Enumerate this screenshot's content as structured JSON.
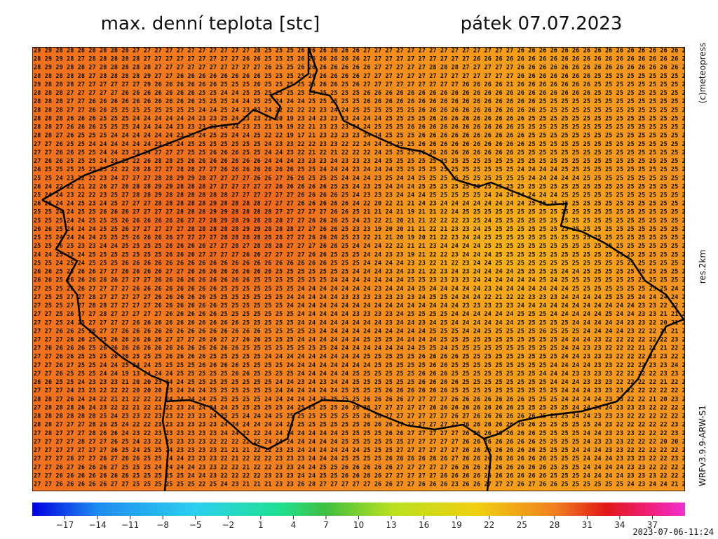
{
  "header": {
    "title": "max. denní teplota [stc]",
    "date": "pátek 07.07.2023"
  },
  "side": {
    "copyright": "(c)meteopress",
    "resolution": "res.2km",
    "model": "WRFv3.9.9-ARW-S1"
  },
  "timestamp": "2023-07-06-11:24",
  "colorbar": {
    "lim": [
      -20,
      40
    ],
    "ticks": [
      {
        "value": -17,
        "label": "−17"
      },
      {
        "value": -14,
        "label": "−14"
      },
      {
        "value": -11,
        "label": "−11"
      },
      {
        "value": -8,
        "label": "−8"
      },
      {
        "value": -5,
        "label": "−5"
      },
      {
        "value": -2,
        "label": "−2"
      },
      1,
      4,
      7,
      10,
      13,
      16,
      19,
      22,
      25,
      28,
      31,
      34,
      37
    ]
  },
  "grid": {
    "rows": [
      "29 29 28 28 28 28 28 28 28 27 27 27 27 27 27 27 27 27 27 27 28 25 25 25 26 26 26 26 26 26 27 27 27 27 27 27 27 27 27 27 27 27 27 27 26 26 26 26 26 26 26 26 26 26 26 26 26 26 26 26",
      "28 29 29 28 27 28 28 28 28 28 27 27 27 27 27 27 27 27 27 26 26 25 25 25 26 26 26 26 26 26 27 27 27 27 27 27 27 27 27 27 26 26 26 26 26 26 26 26 26 26 26 26 26 26 26 26 26 26 26 26",
      "28 29 29 28 28 27 28 28 28 28 28 27 27 27 27 27 27 27 27 27 27 26 25 25 26 26 26 26 26 26 26 27 27 27 27 27 28 28 28 27 27 27 27 27 26 26 26 26 26 26 26 26 26 26 26 26 26 26 26 26",
      "28 28 28 28 28 27 28 28 28 28 29 27 27 26 26 26 26 26 26 26 26 25 25 25 25 26 26 26 26 26 27 27 27 27 27 27 27 27 27 27 27 27 27 27 26 26 26 26 26 26 26 25 25 25 25 25 25 25 25 25",
      "29 28 28 28 27 27 27 27 27 27 29 26 26 26 26 26 26 25 25 25 26 25 25 25 25 25 26 26 25 26 27 27 27 27 27 27 27 27 27 26 26 26 26 21 26 26 26 26 26 26 26 25 25 25 25 25 25 25 25 25",
      "28 28 28 27 27 27 27 27 26 26 26 26 26 26 26 25 25 24 24 25 25 25 25 25 25 25 25 25 25 25 26 26 26 26 26 26 26 26 26 26 26 26 26 26 26 26 26 26 26 26 26 25 25 25 25 25 25 25 25 25",
      "28 28 28 27 27 26 26 26 26 26 26 26 26 26 26 25 25 25 24 24 25 25 24 24 24 25 25 25 25 25 26 26 26 26 26 26 26 26 26 26 26 26 26 26 26 26 25 25 25 25 25 25 25 25 25 25 25 25 25 25",
      "28 28 28 27 27 26 26 25 25 25 25 25 25 25 25 24 24 25 24 23 23 24 22 22 22 22 23 24 24 25 25 25 25 25 25 26 26 26 26 26 26 26 26 26 26 26 25 25 25 25 25 25 25 25 25 25 25 25 25 25",
      "28 28 28 26 26 26 25 25 25 24 24 24 24 24 24 23 23 25 24 23 23 21 20 19 23 24 23 23 23 24 24 24 25 25 25 25 26 26 26 26 26 26 26 26 26 25 25 25 25 25 25 25 25 25 25 25 25 25 25 25",
      "28 28 27 26 26 26 25 25 25 24 24 24 24 23 23 23 23 24 24 23 23 21 19 19 22 21 23 23 23 24 24 25 25 25 26 26 26 26 26 26 26 26 26 26 25 25 25 25 25 25 25 25 25 25 25 25 25 25 25 25",
      "28 28 27 26 25 25 25 24 24 24 24 24 24 23 23 24 25 25 24 24 25 22 22 19 17 21 23 23 23 23 24 24 25 25 25 26 26 26 26 26 26 26 26 26 26 25 25 25 25 25 25 25 25 25 25 25 25 25 25 25",
      "27 27 26 25 25 24 24 24 24 24 24 23 23 24 25 25 25 25 25 25 25 24 23 23 22 22 23 23 22 22 24 24 25 25 25 26 26 26 26 26 26 26 26 26 26 25 25 25 25 25 25 25 25 25 25 25 25 25 25 25",
      "27 27 26 26 25 25 24 24 23 23 24 27 27 27 25 25 26 26 26 25 25 24 24 23 22 21 22 21 22 22 22 24 25 25 25 26 26 26 26 26 26 26 26 26 25 25 25 25 25 25 25 25 25 25 25 25 25 25 25 25",
      "27 26 26 25 25 25 24 23 23 22 26 28 28 25 26 26 26 26 26 26 26 24 24 24 23 23 23 24 23 23 23 24 25 25 25 25 25 25 25 25 25 25 25 25 25 25 25 25 25 25 25 25 25 25 25 25 25 25 25 25",
      "26 25 25 25 25 23 23 22 22 28 28 27 27 28 28 27 27 26 26 26 26 26 26 26 25 25 24 24 24 23 24 24 24 25 25 25 25 25 25 25 25 25 25 25 24 24 24 24 25 25 25 25 25 25 25 25 25 25 25 25",
      "25 25 24 23 22 22 23 24 27 27 27 28 28 29 29 28 27 27 27 27 26 26 27 26 26 25 25 25 24 24 24 23 25 24 24 25 25 25 25 25 25 25 25 25 25 24 24 24 24 24 25 25 25 25 25 25 25 25 25 25",
      "26 24 22 22 21 22 26 27 28 28 28 29 29 28 28 28 27 27 27 27 27 27 26 26 26 26 26 25 25 24 23 25 24 24 24 25 25 25 25 25 25 25 25 25 25 25 25 25 25 25 25 25 25 25 25 25 25 25 25 25",
      "25 24 24 23 22 22 23 25 27 28 28 29 28 28 28 28 28 28 27 27 27 27 27 27 26 26 26 26 25 24 23 23 23 24 24 24 25 25 25 25 25 24 24 24 24 24 24 24 25 25 25 25 25 25 25 25 25 25 25 25",
      "26 25 24 24 25 23 24 25 27 27 27 28 28 28 28 28 29 28 28 28 28 27 27 27 26 26 26 26 26 24 22 20 22 21 21 24 23 24 24 24 24 24 24 24 24 25 25 25 25 25 25 25 25 25 25 25 25 25 25 25",
      "25 25 24 24 25 25 26 26 26 27 27 27 27 28 28 28 29 29 28 28 28 28 27 27 27 27 27 26 26 25 21 21 24 21 19 21 21 22 24 25 25 25 25 25 25 25 25 25 25 25 25 25 25 25 25 25 25 25 25 25",
      "25 25 25 24 24 25 25 25 26 26 26 26 26 26 27 27 28 29 28 29 28 28 28 27 27 26 26 26 25 24 23 22 21 20 21 21 22 22 22 23 25 24 25 25 25 25 25 25 25 25 25 25 25 25 25 25 25 25 25 25",
      "26 26 25 24 24 24 25 25 26 27 27 27 27 27 28 28 28 28 28 29 29 28 28 28 27 27 26 26 25 23 23 19 20 20 21 21 22 21 23 23 24 25 25 25 25 25 25 25 25 25 25 25 25 25 25 25 25 25 25 25",
      "25 25 24 24 24 24 25 25 25 26 26 26 26 27 27 27 27 28 28 28 28 28 28 27 27 26 26 26 25 23 22 21 21 20 19 20 21 22 23 24 24 25 25 25 25 25 25 25 25 25 25 25 25 25 25 25 25 25 25 25",
      "25 25 26 25 23 23 24 24 25 25 25 25 26 26 26 26 27 27 28 27 28 28 28 27 27 27 26 26 25 24 24 24 22 22 21 21 23 24 24 24 24 25 25 25 25 25 25 25 25 25 25 25 25 25 25 25 25 25 25 25",
      "24 24 25 23 24 25 25 25 25 25 25 25 26 26 26 27 27 27 27 26 26 27 27 27 27 26 26 25 25 25 24 24 23 23 19 21 22 22 23 24 24 24 25 25 25 25 25 25 25 25 25 25 25 25 25 25 25 25 25 25",
      "25 25 24 25 24 25 25 25 26 26 26 26 26 26 26 26 26 26 26 26 26 26 26 26 26 26 26 25 25 25 24 24 24 24 23 23 22 21 22 23 24 24 25 25 25 25 25 25 25 25 25 25 25 25 25 25 25 25 25 25",
      "26 26 25 25 26 26 27 27 26 26 26 26 27 27 26 26 26 26 26 26 26 26 25 25 25 25 25 25 25 24 24 24 23 24 23 21 22 23 24 23 24 24 24 24 25 25 25 25 24 24 25 25 25 25 25 25 25 25 25 25",
      "26 26 25 26 26 26 26 26 27 27 27 26 26 26 26 26 26 26 26 26 25 25 25 25 25 25 25 24 24 24 24 24 24 24 25 25 23 23 23 23 24 24 24 24 24 24 25 24 25 25 25 25 25 25 25 25 25 25 25 24",
      "27 25 25 26 26 27 27 27 27 26 26 26 26 26 26 26 26 25 25 25 25 25 25 25 24 24 24 24 24 24 24 23 24 24 24 25 24 24 24 24 24 23 24 24 24 24 24 24 24 25 25 25 25 25 25 25 25 25 24 24",
      "27 25 25 27 27 28 27 27 27 27 27 26 26 26 26 26 25 25 25 25 25 25 25 24 24 24 24 24 23 23 23 23 23 23 23 24 25 25 24 24 24 22 21 22 22 23 23 23 24 24 24 24 25 25 25 24 24 24 24 24",
      "27 25 25 27 27 28 28 27 27 27 27 26 26 26 26 26 26 25 25 25 25 25 25 24 24 24 24 24 24 24 24 24 24 24 24 24 24 24 24 23 23 23 23 23 24 24 24 24 24 24 24 24 24 24 24 23 23 22 22 22",
      "27 27 25 26 27 27 28 27 27 27 27 27 26 26 26 26 26 25 25 25 25 25 25 25 24 24 24 24 24 23 23 23 23 24 25 25 25 25 24 24 24 24 24 24 25 25 25 24 24 24 24 24 25 24 24 23 23 21 21 21",
      "27 27 25 24 25 27 27 27 27 26 26 26 26 26 26 26 26 26 26 25 25 25 25 25 24 24 24 24 24 24 24 24 23 24 24 23 24 25 24 24 24 24 24 24 25 25 25 25 25 24 24 24 24 24 23 23 22 20 21 21",
      "27 27 26 26 25 26 27 27 26 26 26 26 26 26 26 26 26 26 26 26 26 25 25 25 25 25 24 24 24 24 24 24 24 24 24 24 25 25 25 24 24 25 25 25 25 25 26 25 25 25 24 24 24 24 23 22 22 21 21 21",
      "27 27 27 26 26 25 25 26 26 26 26 26 27 27 27 26 26 27 27 26 26 25 25 25 24 24 24 24 24 24 25 25 25 24 24 24 24 25 25 25 25 25 25 25 25 25 25 25 24 24 24 23 22 22 22 22 22 22 23 22",
      "27 26 26 26 26 25 26 26 26 26 26 26 26 26 26 26 26 26 26 25 25 25 25 25 25 25 25 24 24 24 24 24 24 24 24 25 25 24 25 25 25 25 25 25 25 25 25 25 24 24 23 23 22 22 22 21 21 21 22 22",
      "27 27 26 26 25 25 25 26 26 25 25 25 26 26 26 26 25 25 25 25 25 24 24 24 24 24 24 24 24 24 25 25 25 25 25 26 26 26 26 25 25 25 25 25 25 25 25 25 24 24 23 23 23 22 22 22 23 23 22 22",
      "27 27 26 27 25 25 24 24 25 24 24 25 25 25 25 26 26 26 26 25 25 25 25 24 24 24 24 24 24 24 24 25 25 25 25 25 26 26 25 25 25 25 25 25 25 25 25 24 24 24 24 23 23 22 22 22 23 23 24 23",
      "27 27 26 25 25 25 24 24 19 13 24 24 24 25 25 25 25 25 26 26 25 25 25 25 24 24 24 24 24 25 25 25 25 25 25 26 26 26 25 25 25 25 25 25 25 25 24 24 24 23 23 23 23 22 22 22 22 23 23 22",
      "26 26 25 25 24 23 23 23 21 20 20 23 24 24 25 25 25 25 25 25 25 25 24 24 23 24 23 24 24 25 25 25 25 25 25 26 26 26 26 25 25 25 25 25 25 25 25 24 24 24 23 23 23 22 22 22 22 21 22 20",
      "27 27 27 24 23 23 22 22 22 20 20 20 23 24 24 24 25 25 25 25 25 25 24 24 24 24 24 24 25 25 25 25 26 26 26 26 26 26 25 25 25 25 25 25 25 25 25 25 24 24 24 23 23 23 22 22 22 22 22 23",
      "28 28 27 26 24 24 22 21 21 22 22 22 24 24 24 24 25 25 25 25 25 24 24 24 24 24 25 25 25 25 26 26 26 26 27 27 27 27 26 26 26 26 26 26 26 25 25 25 24 24 24 24 23 23 22 22 21 20 23 22",
      "27 28 28 28 26 24 23 22 22 21 22 21 22 23 24 24 24 24 25 25 25 25 25 24 25 25 25 25 26 26 26 27 27 27 27 27 26 26 26 26 26 26 26 26 25 25 25 25 25 24 24 24 24 23 23 23 22 22 22 23",
      "28 28 28 28 28 28 25 24 23 23 22 23 23 22 23 23 24 25 25 24 24 24 25 25 25 25 25 25 25 25 26 26 27 27 27 27 27 27 26 27 26 26 26 26 26 26 25 25 25 24 24 23 23 23 22 22 22 22 22 22",
      "28 28 27 27 27 28 26 25 24 22 22 23 23 23 23 23 23 24 24 24 24 24 24 24 25 25 25 25 25 25 26 26 26 27 27 27 27 27 27 26 26 26 26 26 26 26 25 25 25 25 25 24 23 22 22 22 22 22 23 22",
      "27 28 27 27 27 28 26 26 24 23 22 23 23 23 23 23 23 24 24 22 22 24 24 24 24 24 24 24 25 25 25 25 26 26 27 27 27 27 27 26 26 26 26 26 26 26 25 25 25 25 24 24 23 23 23 22 22 22 23 21",
      "27 27 27 27 28 27 27 26 25 24 23 22 23 23 23 23 22 22 22 22 22 24 24 24 24 24 24 24 25 25 25 25 25 25 27 27 27 27 27 26 26 26 26 26 26 26 25 25 25 25 24 23 23 23 22 22 22 20 20 21",
      "27 27 27 27 27 27 27 26 25 24 25 25 24 23 23 23 23 21 21 21 22 22 23 23 24 24 24 24 24 24 25 25 25 27 27 27 27 27 27 26 26 26 26 26 26 26 25 25 25 24 24 24 23 23 22 22 22 22 22 22",
      "27 27 27 26 27 27 26 27 26 26 25 25 24 24 23 23 23 22 21 22 22 22 23 23 23 24 24 24 25 25 25 25 26 26 26 26 26 26 27 26 26 26 26 26 26 26 26 25 25 25 24 24 24 23 23 23 22 22 23 22",
      "27 27 26 27 26 26 26 27 25 25 25 24 24 24 24 23 23 22 22 21 22 22 23 23 24 24 25 25 26 26 26 26 26 27 27 27 27 27 26 26 26 26 26 26 26 26 26 25 25 25 24 24 24 24 23 23 22 22 22 22",
      "27 27 26 26 26 26 26 26 26 25 25 25 25 25 24 24 23 22 22 22 22 23 23 23 24 24 25 25 26 26 26 26 27 27 27 27 27 26 26 26 26 26 26 26 26 26 26 25 25 25 24 24 24 24 23 23 23 22 22 22",
      "27 27 26 26 26 26 26 27 27 25 25 25 25 25 25 22 25 24 23 21 21 21 23 23 26 28 27 27 27 27 27 26 26 27 27 26 26 26 23 26 26 27 27 27 26 27 26 26 25 25 25 25 25 25 24 23 24 24 21 21"
    ]
  }
}
